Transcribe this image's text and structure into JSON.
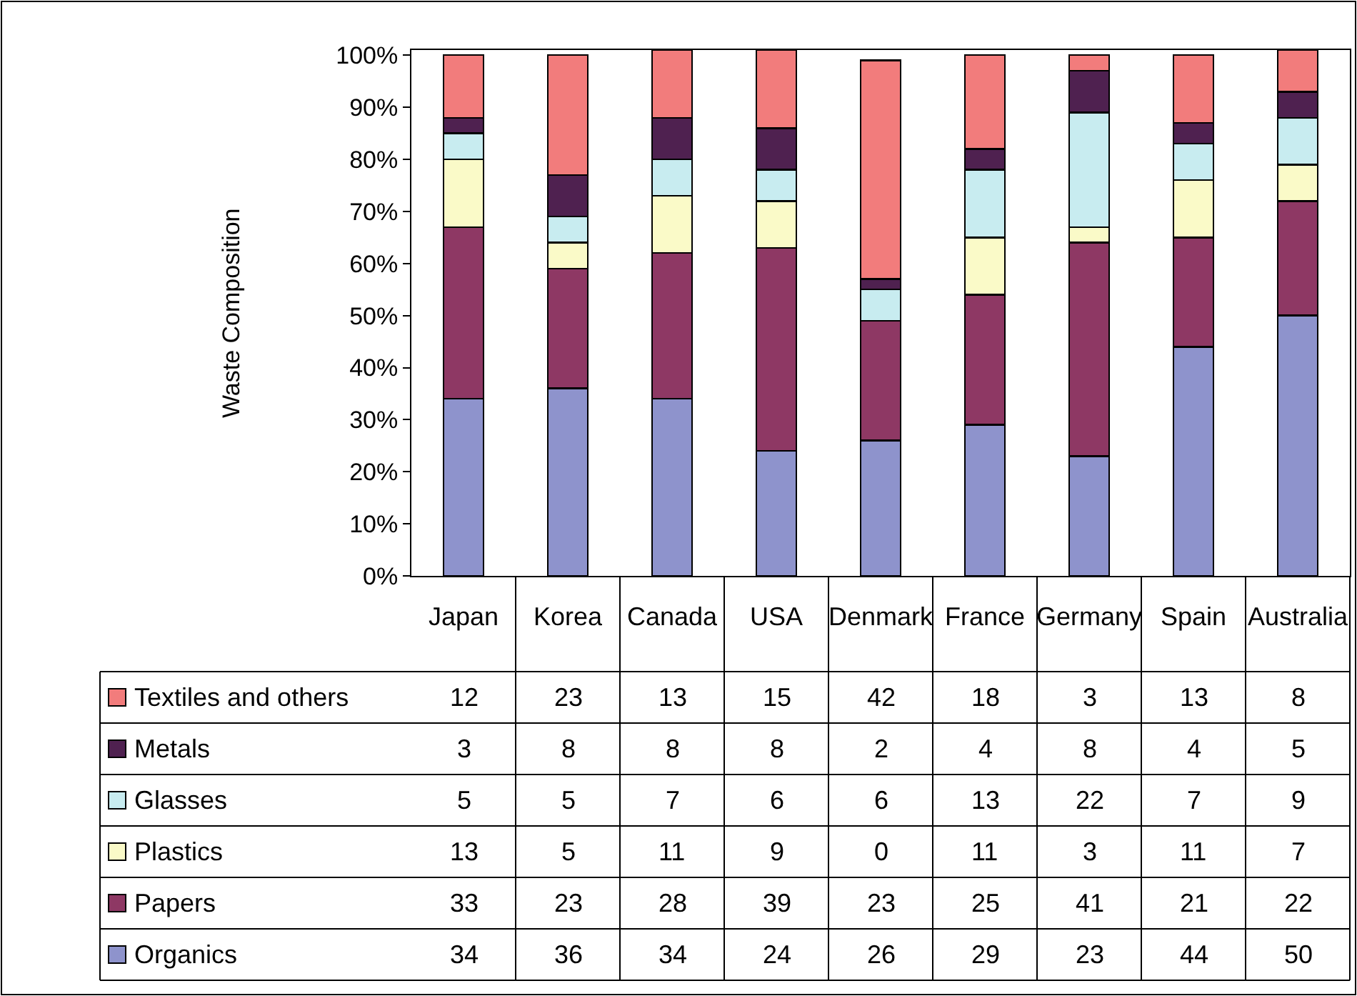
{
  "chart_data": {
    "type": "bar",
    "stacked": true,
    "ylabel": "Waste Composition",
    "categories": [
      "Japan",
      "Korea",
      "Canada",
      "USA",
      "Denmark",
      "France",
      "Germany",
      "Spain",
      "Australia"
    ],
    "series": [
      {
        "name": "Organics",
        "color": "#8e93cc",
        "values": [
          34,
          36,
          34,
          24,
          26,
          29,
          23,
          44,
          50
        ]
      },
      {
        "name": "Papers",
        "color": "#8e3864",
        "values": [
          33,
          23,
          28,
          39,
          23,
          25,
          41,
          21,
          22
        ]
      },
      {
        "name": "Plastics",
        "color": "#fafac8",
        "values": [
          13,
          5,
          11,
          9,
          0,
          11,
          3,
          11,
          7
        ]
      },
      {
        "name": "Glasses",
        "color": "#c8ecf0",
        "values": [
          5,
          5,
          7,
          6,
          6,
          13,
          22,
          7,
          9
        ]
      },
      {
        "name": "Metals",
        "color": "#4f2150",
        "values": [
          3,
          8,
          8,
          8,
          2,
          4,
          8,
          4,
          5
        ]
      },
      {
        "name": "Textiles and others",
        "color": "#f27c7c",
        "values": [
          12,
          23,
          13,
          15,
          42,
          18,
          3,
          13,
          8
        ]
      }
    ],
    "ylim": [
      0,
      101
    ],
    "yticks": [
      {
        "value": 0,
        "label": "0%"
      },
      {
        "value": 10,
        "label": "10%"
      },
      {
        "value": 20,
        "label": "20%"
      },
      {
        "value": 30,
        "label": "30%"
      },
      {
        "value": 40,
        "label": "40%"
      },
      {
        "value": 50,
        "label": "50%"
      },
      {
        "value": 60,
        "label": "60%"
      },
      {
        "value": 70,
        "label": "70%"
      },
      {
        "value": 80,
        "label": "80%"
      },
      {
        "value": 90,
        "label": "90%"
      },
      {
        "value": 100,
        "label": "100%"
      }
    ],
    "grid": false,
    "legend": "bottom left",
    "data_labels": true
  }
}
